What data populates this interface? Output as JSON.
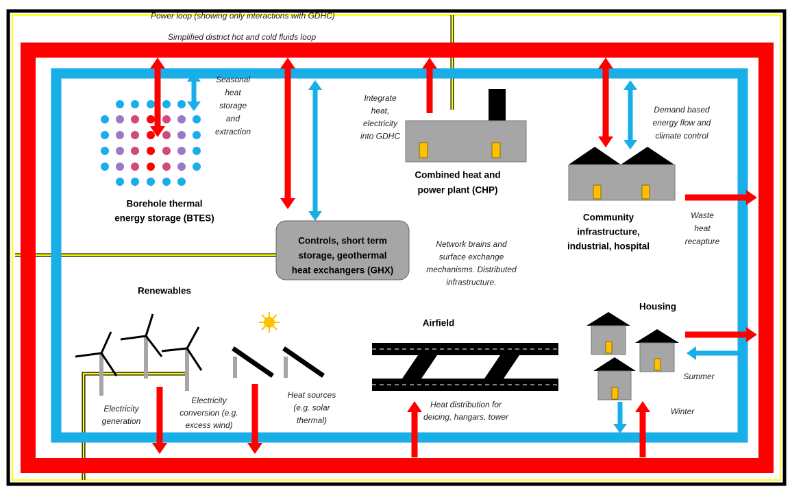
{
  "title": "Power loop (showing only interactions with GDHC)",
  "loop_label": "Simplified district hot and cold fluids loop",
  "btes": {
    "note": [
      "Seasonal",
      "heat",
      "storage",
      "and",
      "extraction"
    ],
    "name": [
      "Borehole thermal",
      "energy storage (BTES)"
    ]
  },
  "chp": {
    "note": [
      "Integrate",
      "heat,",
      "electricity",
      "into GDHC"
    ],
    "name": [
      "Combined heat and",
      "power plant (CHP)"
    ]
  },
  "community": {
    "note": [
      "Demand based",
      "energy flow and",
      "climate control"
    ],
    "name": [
      "Community",
      "infrastructure,",
      "industrial, hospital"
    ]
  },
  "waste": [
    "Waste",
    "heat",
    "recapture"
  ],
  "controls": {
    "name": [
      "Controls, short term",
      "storage, geothermal",
      "heat exchangers (GHX)"
    ],
    "note": [
      "Network brains and",
      "surface exchange",
      "mechanisms.  Distributed",
      "infrastructure."
    ]
  },
  "renewables": {
    "name": "Renewables",
    "generation": [
      "Electricity",
      "generation"
    ],
    "conversion": [
      "Electricity",
      "conversion (e.g.",
      "excess wind)"
    ],
    "heat_sources": [
      "Heat sources",
      "(e.g. solar",
      "thermal)"
    ]
  },
  "airfield": {
    "name": "Airfield",
    "note": [
      "Heat distribution for",
      "deicing, hangars, tower"
    ]
  },
  "housing": {
    "name": "Housing",
    "summer": "Summer",
    "winter": "Winter"
  }
}
